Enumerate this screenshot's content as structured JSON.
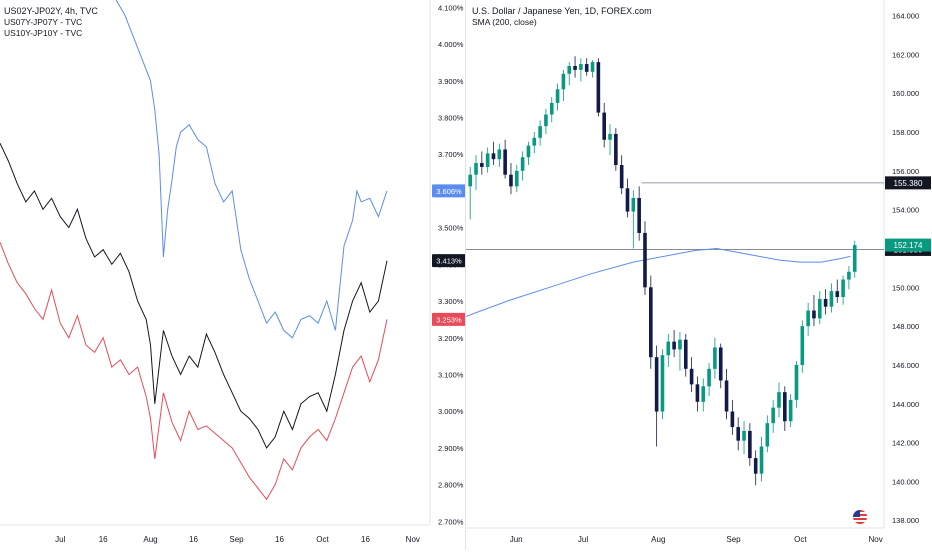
{
  "chart_data": [
    {
      "type": "line",
      "legend": [
        "US02Y-JP02Y, 4h, TVC",
        "US07Y-JP07Y - TVC",
        "US10Y-JP10Y - TVC"
      ],
      "y_ticks": [
        "4.100%",
        "4.000%",
        "3.900%",
        "3.800%",
        "3.700%",
        "3.600%",
        "3.500%",
        "3.400%",
        "3.300%",
        "3.200%",
        "3.100%",
        "3.000%",
        "2.900%",
        "2.800%",
        "2.700%"
      ],
      "x_ticks": [
        "Jul",
        "16",
        "Aug",
        "16",
        "Sep",
        "16",
        "Oct",
        "16",
        "Nov"
      ],
      "ylim": [
        2.69,
        4.12
      ],
      "x_axis_range": [
        0,
        100
      ],
      "last_value_labels": [
        {
          "series": "US02Y-JP02Y",
          "text": "3.606%",
          "color": "#5b8def"
        },
        {
          "series": "US07Y-JP07Y",
          "text": "3.413%",
          "color": "#131722"
        },
        {
          "series": "US10Y-JP10Y",
          "text": "3.253%",
          "color": "#e84b57"
        }
      ],
      "series": [
        {
          "name": "US02Y-JP02Y",
          "color": "#5b8def",
          "x": [
            27,
            29,
            31,
            33,
            35,
            36,
            37,
            38,
            39,
            40,
            41,
            42,
            44,
            46,
            48,
            50,
            52,
            54,
            55,
            56,
            58,
            60,
            62,
            64,
            66,
            68,
            70,
            72,
            74,
            76,
            78,
            80,
            82,
            83,
            84,
            86,
            88,
            90
          ],
          "y": [
            4.12,
            4.08,
            4.02,
            3.96,
            3.9,
            3.82,
            3.7,
            3.42,
            3.55,
            3.63,
            3.72,
            3.76,
            3.78,
            3.74,
            3.72,
            3.62,
            3.57,
            3.6,
            3.52,
            3.44,
            3.36,
            3.3,
            3.24,
            3.27,
            3.22,
            3.2,
            3.25,
            3.26,
            3.24,
            3.3,
            3.22,
            3.45,
            3.52,
            3.6,
            3.57,
            3.58,
            3.53,
            3.6
          ]
        },
        {
          "name": "US07Y-JP07Y",
          "color": "#131722",
          "x": [
            0,
            2,
            4,
            6,
            8,
            10,
            12,
            14,
            16,
            18,
            20,
            22,
            24,
            26,
            28,
            30,
            32,
            34,
            35,
            36,
            38,
            40,
            42,
            44,
            46,
            48,
            50,
            52,
            54,
            56,
            58,
            60,
            62,
            64,
            66,
            68,
            70,
            72,
            74,
            76,
            78,
            80,
            82,
            84,
            86,
            88,
            90
          ],
          "y": [
            3.73,
            3.68,
            3.62,
            3.57,
            3.6,
            3.55,
            3.58,
            3.53,
            3.5,
            3.55,
            3.47,
            3.42,
            3.44,
            3.4,
            3.43,
            3.38,
            3.3,
            3.25,
            3.18,
            3.02,
            3.22,
            3.15,
            3.1,
            3.15,
            3.12,
            3.21,
            3.16,
            3.1,
            3.05,
            3.0,
            2.98,
            2.95,
            2.9,
            2.93,
            3.0,
            2.95,
            3.02,
            3.04,
            3.05,
            3.0,
            3.1,
            3.22,
            3.3,
            3.35,
            3.27,
            3.3,
            3.41
          ]
        },
        {
          "name": "US10Y-JP10Y",
          "color": "#e84b57",
          "x": [
            0,
            2,
            4,
            6,
            8,
            10,
            12,
            14,
            16,
            18,
            20,
            22,
            24,
            26,
            28,
            30,
            32,
            34,
            35,
            36,
            38,
            40,
            42,
            44,
            46,
            48,
            50,
            52,
            54,
            56,
            58,
            60,
            62,
            64,
            66,
            68,
            70,
            72,
            74,
            76,
            78,
            80,
            82,
            84,
            86,
            88,
            90
          ],
          "y": [
            3.46,
            3.4,
            3.35,
            3.32,
            3.28,
            3.25,
            3.33,
            3.24,
            3.2,
            3.26,
            3.18,
            3.16,
            3.2,
            3.12,
            3.14,
            3.1,
            3.12,
            3.04,
            2.98,
            2.87,
            3.05,
            2.97,
            2.92,
            3.0,
            2.95,
            2.96,
            2.94,
            2.92,
            2.9,
            2.86,
            2.82,
            2.79,
            2.76,
            2.8,
            2.87,
            2.84,
            2.9,
            2.93,
            2.95,
            2.92,
            2.98,
            3.05,
            3.12,
            3.15,
            3.08,
            3.14,
            3.25
          ]
        }
      ]
    },
    {
      "type": "candlestick",
      "legend": [
        "U.S. Dollar / Japanese Yen, 1D, FOREX.com",
        "SMA (200, close)"
      ],
      "y_ticks": [
        "164.000",
        "162.000",
        "160.000",
        "158.000",
        "156.000",
        "154.000",
        "152.000",
        "150.000",
        "148.000",
        "146.000",
        "144.000",
        "142.000",
        "140.000",
        "138.000"
      ],
      "x_ticks": [
        "Jun",
        "Jul",
        "Aug",
        "Sep",
        "Oct",
        "Nov"
      ],
      "ylim": [
        137.6,
        164.8
      ],
      "x_axis_range": [
        0,
        100
      ],
      "horizontal_lines": [
        {
          "value": 155.38,
          "label": "155.380"
        },
        {
          "value": 151.95,
          "label": "151.950"
        }
      ],
      "last_price_label": {
        "text": "152.174",
        "value": 152.174,
        "color": "#089981"
      },
      "sma_200": {
        "color": "#5b8def",
        "x": [
          0,
          10,
          20,
          30,
          40,
          50,
          55,
          60,
          65,
          70,
          75,
          80,
          85,
          90,
          92
        ],
        "y": [
          148.5,
          149.3,
          150.0,
          150.7,
          151.3,
          151.7,
          151.9,
          152.0,
          151.8,
          151.6,
          151.4,
          151.3,
          151.3,
          151.5,
          151.6
        ]
      },
      "candles": [
        {
          "o": 155.2,
          "h": 156.2,
          "l": 153.5,
          "c": 155.8
        },
        {
          "o": 155.8,
          "h": 156.8,
          "l": 155.0,
          "c": 156.4
        },
        {
          "o": 156.4,
          "h": 157.0,
          "l": 155.8,
          "c": 156.2
        },
        {
          "o": 156.2,
          "h": 157.2,
          "l": 155.9,
          "c": 156.9
        },
        {
          "o": 156.9,
          "h": 157.5,
          "l": 156.3,
          "c": 156.6
        },
        {
          "o": 156.6,
          "h": 157.4,
          "l": 156.2,
          "c": 157.1
        },
        {
          "o": 157.1,
          "h": 157.6,
          "l": 155.6,
          "c": 155.8
        },
        {
          "o": 155.8,
          "h": 156.4,
          "l": 154.8,
          "c": 155.2
        },
        {
          "o": 155.2,
          "h": 156.3,
          "l": 154.9,
          "c": 156.0
        },
        {
          "o": 156.0,
          "h": 157.0,
          "l": 155.5,
          "c": 156.7
        },
        {
          "o": 156.7,
          "h": 157.5,
          "l": 156.3,
          "c": 157.3
        },
        {
          "o": 157.3,
          "h": 158.0,
          "l": 156.9,
          "c": 157.7
        },
        {
          "o": 157.7,
          "h": 158.6,
          "l": 157.3,
          "c": 158.3
        },
        {
          "o": 158.3,
          "h": 159.2,
          "l": 157.9,
          "c": 158.9
        },
        {
          "o": 158.9,
          "h": 159.8,
          "l": 158.5,
          "c": 159.5
        },
        {
          "o": 159.5,
          "h": 160.5,
          "l": 159.1,
          "c": 160.2
        },
        {
          "o": 160.2,
          "h": 161.2,
          "l": 159.6,
          "c": 161.0
        },
        {
          "o": 161.0,
          "h": 161.6,
          "l": 160.4,
          "c": 161.4
        },
        {
          "o": 161.4,
          "h": 161.9,
          "l": 160.8,
          "c": 161.2
        },
        {
          "o": 161.2,
          "h": 161.8,
          "l": 160.6,
          "c": 161.5
        },
        {
          "o": 161.5,
          "h": 161.8,
          "l": 160.9,
          "c": 161.1
        },
        {
          "o": 161.1,
          "h": 161.7,
          "l": 160.8,
          "c": 161.6
        },
        {
          "o": 161.6,
          "h": 161.8,
          "l": 158.8,
          "c": 159.0
        },
        {
          "o": 159.0,
          "h": 159.5,
          "l": 157.2,
          "c": 157.6
        },
        {
          "o": 157.6,
          "h": 158.4,
          "l": 156.8,
          "c": 157.9
        },
        {
          "o": 157.9,
          "h": 158.2,
          "l": 156.0,
          "c": 156.3
        },
        {
          "o": 156.3,
          "h": 156.8,
          "l": 154.8,
          "c": 155.1
        },
        {
          "o": 155.1,
          "h": 155.6,
          "l": 153.6,
          "c": 153.9
        },
        {
          "o": 153.9,
          "h": 155.0,
          "l": 152.0,
          "c": 154.6
        },
        {
          "o": 154.6,
          "h": 155.2,
          "l": 152.4,
          "c": 152.8
        },
        {
          "o": 152.8,
          "h": 153.4,
          "l": 149.6,
          "c": 150.0
        },
        {
          "o": 150.0,
          "h": 150.6,
          "l": 145.8,
          "c": 146.4
        },
        {
          "o": 146.4,
          "h": 147.0,
          "l": 141.8,
          "c": 143.6
        },
        {
          "o": 143.6,
          "h": 146.8,
          "l": 143.2,
          "c": 146.5
        },
        {
          "o": 146.5,
          "h": 147.6,
          "l": 145.9,
          "c": 147.2
        },
        {
          "o": 147.2,
          "h": 147.8,
          "l": 146.4,
          "c": 146.8
        },
        {
          "o": 146.8,
          "h": 147.7,
          "l": 145.7,
          "c": 147.3
        },
        {
          "o": 147.3,
          "h": 147.6,
          "l": 145.4,
          "c": 145.8
        },
        {
          "o": 145.8,
          "h": 146.4,
          "l": 144.6,
          "c": 145.0
        },
        {
          "o": 145.0,
          "h": 145.4,
          "l": 143.6,
          "c": 144.1
        },
        {
          "o": 144.1,
          "h": 145.3,
          "l": 143.6,
          "c": 144.9
        },
        {
          "o": 144.9,
          "h": 146.1,
          "l": 144.4,
          "c": 145.8
        },
        {
          "o": 145.8,
          "h": 147.4,
          "l": 145.3,
          "c": 146.9
        },
        {
          "o": 146.9,
          "h": 147.1,
          "l": 144.8,
          "c": 145.2
        },
        {
          "o": 145.2,
          "h": 145.8,
          "l": 143.2,
          "c": 143.6
        },
        {
          "o": 143.6,
          "h": 144.2,
          "l": 142.4,
          "c": 142.8
        },
        {
          "o": 142.8,
          "h": 143.3,
          "l": 141.6,
          "c": 142.1
        },
        {
          "o": 142.1,
          "h": 143.1,
          "l": 141.4,
          "c": 142.6
        },
        {
          "o": 142.6,
          "h": 143.0,
          "l": 140.8,
          "c": 141.2
        },
        {
          "o": 141.2,
          "h": 141.6,
          "l": 139.8,
          "c": 140.4
        },
        {
          "o": 140.4,
          "h": 142.3,
          "l": 140.0,
          "c": 141.8
        },
        {
          "o": 141.8,
          "h": 143.4,
          "l": 141.5,
          "c": 143.0
        },
        {
          "o": 143.0,
          "h": 144.2,
          "l": 142.5,
          "c": 143.8
        },
        {
          "o": 143.8,
          "h": 145.1,
          "l": 143.3,
          "c": 144.6
        },
        {
          "o": 144.6,
          "h": 144.9,
          "l": 142.6,
          "c": 143.1
        },
        {
          "o": 143.1,
          "h": 144.5,
          "l": 142.8,
          "c": 144.2
        },
        {
          "o": 144.2,
          "h": 146.2,
          "l": 143.8,
          "c": 146.0
        },
        {
          "o": 146.0,
          "h": 148.3,
          "l": 145.6,
          "c": 148.0
        },
        {
          "o": 148.0,
          "h": 149.2,
          "l": 147.5,
          "c": 148.8
        },
        {
          "o": 148.8,
          "h": 149.6,
          "l": 148.0,
          "c": 148.4
        },
        {
          "o": 148.4,
          "h": 149.8,
          "l": 148.1,
          "c": 149.4
        },
        {
          "o": 149.4,
          "h": 149.9,
          "l": 148.6,
          "c": 149.0
        },
        {
          "o": 149.0,
          "h": 150.2,
          "l": 148.7,
          "c": 149.8
        },
        {
          "o": 149.8,
          "h": 150.4,
          "l": 149.2,
          "c": 149.5
        },
        {
          "o": 149.5,
          "h": 150.6,
          "l": 149.1,
          "c": 150.4
        },
        {
          "o": 150.4,
          "h": 151.1,
          "l": 149.9,
          "c": 150.8
        },
        {
          "o": 150.8,
          "h": 152.4,
          "l": 150.5,
          "c": 152.17
        }
      ]
    }
  ]
}
